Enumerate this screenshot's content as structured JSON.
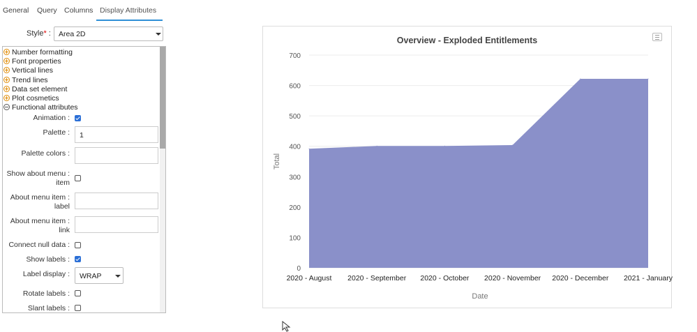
{
  "tabs": [
    {
      "label": "General"
    },
    {
      "label": "Query"
    },
    {
      "label": "Columns"
    },
    {
      "label": "Display Attributes",
      "active": true
    }
  ],
  "style_field": {
    "label": "Style",
    "required_mark": "*",
    "value": "Area 2D"
  },
  "tree": [
    {
      "label": "Number formatting",
      "expanded": false
    },
    {
      "label": "Font properties",
      "expanded": false
    },
    {
      "label": "Vertical lines",
      "expanded": false
    },
    {
      "label": "Trend lines",
      "expanded": false
    },
    {
      "label": "Data set element",
      "expanded": false
    },
    {
      "label": "Plot cosmetics",
      "expanded": false
    },
    {
      "label": "Functional attributes",
      "expanded": true
    }
  ],
  "fields": {
    "animation": {
      "label": "Animation :",
      "checked": true
    },
    "palette": {
      "label": "Palette :",
      "value": "1"
    },
    "palette_colors": {
      "label": "Palette colors :",
      "value": ""
    },
    "show_about_menu": {
      "label_line1": "Show about menu :",
      "label_line2": "item",
      "checked": false
    },
    "about_menu_label": {
      "label_line1": "About menu item :",
      "label_line2": "label",
      "value": ""
    },
    "about_menu_link": {
      "label_line1": "About menu item :",
      "label_line2": "link",
      "value": ""
    },
    "connect_null": {
      "label": "Connect null data :",
      "checked": false
    },
    "show_labels": {
      "label": "Show labels :",
      "checked": true
    },
    "label_display": {
      "label": "Label display :",
      "value": "WRAP"
    },
    "rotate_labels": {
      "label": "Rotate labels :",
      "checked": false
    },
    "slant_labels": {
      "label": "Slant labels :",
      "checked": false
    }
  },
  "colors": {
    "accent": "#2f8fd6",
    "area_fill": "#8a90c9",
    "expand_icon": "#e08a00"
  },
  "chart_data": {
    "type": "area",
    "title": "Overview - Exploded Entitlements",
    "xlabel": "Date",
    "ylabel": "Total",
    "categories": [
      "2020 - August",
      "2020 - September",
      "2020 - October",
      "2020 - November",
      "2020 - December",
      "2021 - January"
    ],
    "values": [
      392,
      401,
      401,
      404,
      622,
      622
    ],
    "ylim": [
      0,
      700
    ],
    "yticks": [
      0,
      100,
      200,
      300,
      400,
      500,
      600,
      700
    ],
    "grid": true,
    "legend": "none"
  }
}
